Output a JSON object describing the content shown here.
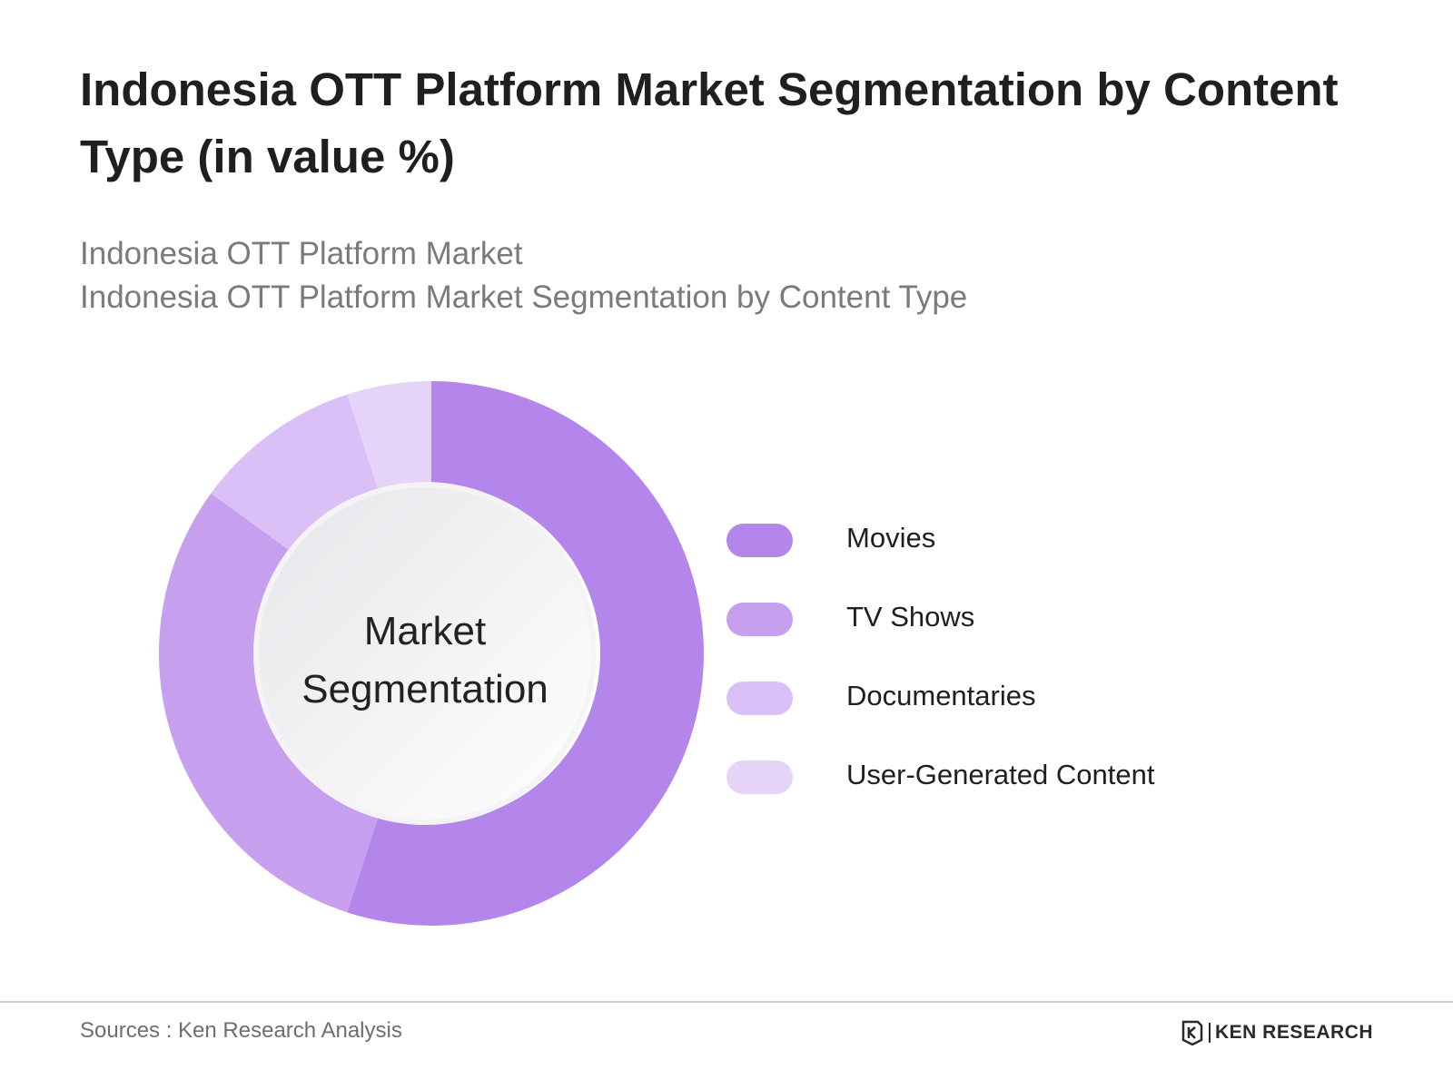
{
  "title": "Indonesia OTT Platform Market Segmentation by Content Type (in value %)",
  "subtitle_lines": [
    "Indonesia OTT Platform Market",
    "Indonesia OTT Platform Market Segmentation by Content Type"
  ],
  "center_label_lines": [
    "Market",
    "Segmentation"
  ],
  "chart_data": {
    "type": "pie",
    "style": "donut",
    "title": "Indonesia OTT Platform Market Segmentation by Content Type (in value %)",
    "categories": [
      "Movies",
      "TV Shows",
      "Documentaries",
      "User-Generated Content"
    ],
    "values": [
      55,
      30,
      10,
      5
    ],
    "colors": [
      "#b486ec",
      "#c6a0ee",
      "#dac0f6",
      "#e5d3f8"
    ],
    "legend_position": "right"
  },
  "footer": {
    "sources": "Sources : Ken Research Analysis",
    "brand": "KEN RESEARCH"
  }
}
